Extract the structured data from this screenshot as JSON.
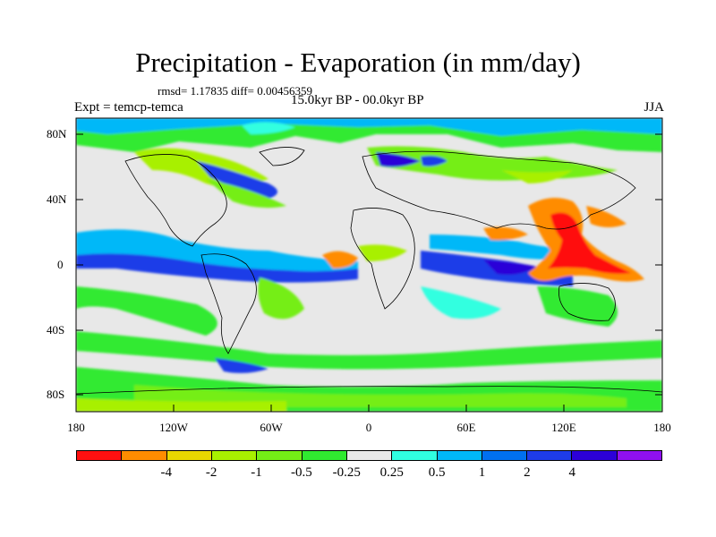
{
  "title": "Precipitation - Evaporation (in mm/day)",
  "stats": "rmsd= 1.17835 diff= 0.00456359",
  "experiment": "Expt = temcp-temca",
  "period": "15.0kyr BP - 00.0kyr BP",
  "season": "JJA",
  "lat_ticks": [
    "80N",
    "40N",
    "0",
    "40S",
    "80S"
  ],
  "lon_ticks": [
    "180",
    "120W",
    "60W",
    "0",
    "60E",
    "120E",
    "180"
  ],
  "colorbar": {
    "colors": [
      "#ff1010",
      "#ff8c00",
      "#e8d800",
      "#a8f000",
      "#74ee16",
      "#30ea30",
      "#e8e8e8",
      "#30ffe0",
      "#00b8f8",
      "#0070f0",
      "#1e3ce8",
      "#2c00d8",
      "#9010f0"
    ],
    "labels": [
      "-4",
      "-2",
      "-1",
      "-0.5",
      "-0.25",
      "0.25",
      "0.5",
      "1",
      "2",
      "4"
    ]
  },
  "icons": {
    "map": "world-map-contour-icon"
  }
}
